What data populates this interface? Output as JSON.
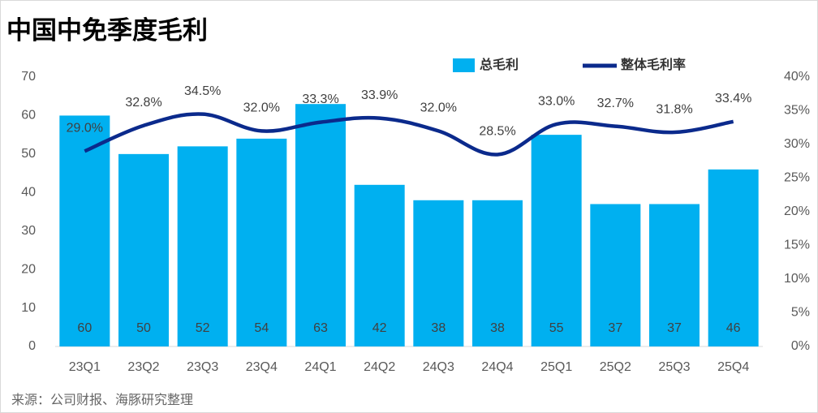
{
  "chart_data": {
    "type": "bar-line",
    "title": "中国中免季度毛利",
    "categories": [
      "23Q1",
      "23Q2",
      "23Q3",
      "23Q4",
      "24Q1",
      "24Q2",
      "24Q3",
      "24Q4",
      "25Q1",
      "25Q2",
      "25Q3",
      "25Q4"
    ],
    "series": [
      {
        "name": "总毛利",
        "type": "bar",
        "color": "#00b0f0",
        "values": [
          60,
          50,
          52,
          54,
          63,
          42,
          38,
          38,
          55,
          37,
          37,
          46
        ]
      },
      {
        "name": "整体毛利率",
        "type": "line",
        "axis": "y2",
        "color": "#0b2a8c",
        "values": [
          29.0,
          32.8,
          34.5,
          32.0,
          33.3,
          33.9,
          32.0,
          28.5,
          33.0,
          32.7,
          31.8,
          33.4
        ],
        "value_labels": [
          "29.0%",
          "32.8%",
          "34.5%",
          "32.0%",
          "33.3%",
          "33.9%",
          "32.0%",
          "28.5%",
          "33.0%",
          "32.7%",
          "31.8%",
          "33.4%"
        ]
      }
    ],
    "ylim": [
      0,
      70
    ],
    "yticks": [
      0,
      10,
      20,
      30,
      40,
      50,
      60,
      70
    ],
    "y2lim": [
      0,
      40
    ],
    "y2ticks": [
      {
        "value": 0,
        "label": "0%"
      },
      {
        "value": 5,
        "label": "5%"
      },
      {
        "value": 10,
        "label": "10%"
      },
      {
        "value": 15,
        "label": "15%"
      },
      {
        "value": 20,
        "label": "20%"
      },
      {
        "value": 25,
        "label": "25%"
      },
      {
        "value": 30,
        "label": "30%"
      },
      {
        "value": 35,
        "label": "35%"
      },
      {
        "value": 40,
        "label": "40%"
      }
    ],
    "grid": false
  },
  "source": "来源：公司财报、海豚研究整理"
}
